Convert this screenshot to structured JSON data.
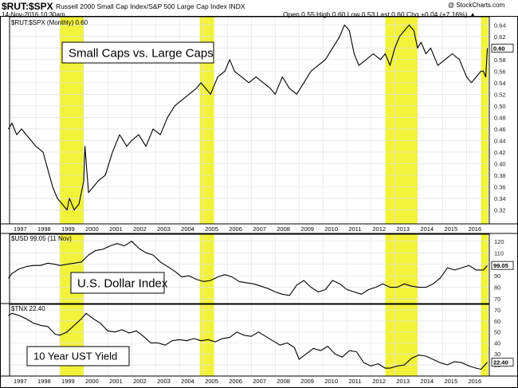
{
  "header": {
    "ticker": "$RUT:$SPX",
    "description": "Russell 2000 Small Cap Index/S&P 500 Large Cap Index  INDX",
    "date": "14-Nov-2016 10:30am",
    "quote": "Open 0.55  High 0.60  Low 0.53  Last 0.60  Chg +0.04 (+7.16%) ▲",
    "credit": "@ StockCharts.com"
  },
  "colors": {
    "highlight": "#f2f23a",
    "line": "#000000",
    "grid": "#e3e3e3",
    "badge_fill": "#ffffff"
  },
  "x_axis_labels": [
    "1997",
    "1998",
    "1999",
    "2000",
    "2001",
    "2002",
    "2003",
    "2004",
    "2005",
    "2006",
    "2007",
    "2008",
    "2009",
    "2010",
    "2011",
    "2012",
    "2013",
    "2014",
    "2015",
    "2016"
  ],
  "highlight_periods": [
    [
      1999.0,
      2000.0
    ],
    [
      2004.85,
      2005.45
    ],
    [
      2012.6,
      2013.95
    ],
    [
      2016.6,
      2016.9
    ]
  ],
  "chart_data": [
    {
      "type": "line",
      "panel": "ratio",
      "legend": "$RUT:$SPX (Monthly) 0.60",
      "annotation": "Small Caps vs. Large Caps",
      "last_value_badge": "0.60",
      "ylim": [
        0.3,
        0.65
      ],
      "yticks": [
        "0.64",
        "0.62",
        "0.60",
        "0.58",
        "0.56",
        "0.54",
        "0.52",
        "0.50",
        "0.48",
        "0.46",
        "0.44",
        "0.42",
        "0.40",
        "0.38",
        "0.36",
        "0.34",
        "0.32"
      ],
      "x": [
        1996.85,
        1997.0,
        1997.2,
        1997.4,
        1997.6,
        1997.8,
        1998.0,
        1998.3,
        1998.5,
        1998.7,
        1998.9,
        1999.1,
        1999.3,
        1999.4,
        1999.6,
        1999.8,
        1999.9,
        2000.0,
        2000.05,
        2000.2,
        2000.4,
        2000.6,
        2000.9,
        2001.2,
        2001.5,
        2001.8,
        2002.0,
        2002.3,
        2002.6,
        2002.9,
        2003.2,
        2003.5,
        2003.8,
        2004.1,
        2004.4,
        2004.7,
        2004.9,
        2005.1,
        2005.3,
        2005.6,
        2005.9,
        2006.1,
        2006.3,
        2006.6,
        2006.9,
        2007.2,
        2007.5,
        2007.8,
        2008.0,
        2008.3,
        2008.6,
        2008.9,
        2009.2,
        2009.5,
        2009.8,
        2010.1,
        2010.4,
        2010.7,
        2010.9,
        2011.1,
        2011.3,
        2011.5,
        2011.8,
        2012.1,
        2012.4,
        2012.6,
        2012.8,
        2013.0,
        2013.2,
        2013.4,
        2013.6,
        2013.8,
        2013.95,
        2014.1,
        2014.3,
        2014.5,
        2014.8,
        2015.1,
        2015.4,
        2015.7,
        2016.0,
        2016.2,
        2016.4,
        2016.6,
        2016.7,
        2016.8,
        2016.87
      ],
      "y": [
        0.46,
        0.47,
        0.45,
        0.46,
        0.45,
        0.44,
        0.43,
        0.42,
        0.39,
        0.36,
        0.34,
        0.33,
        0.32,
        0.34,
        0.32,
        0.33,
        0.35,
        0.37,
        0.43,
        0.35,
        0.36,
        0.37,
        0.38,
        0.42,
        0.45,
        0.43,
        0.44,
        0.45,
        0.43,
        0.46,
        0.45,
        0.48,
        0.5,
        0.51,
        0.52,
        0.53,
        0.54,
        0.53,
        0.52,
        0.55,
        0.56,
        0.58,
        0.56,
        0.55,
        0.54,
        0.55,
        0.54,
        0.53,
        0.52,
        0.55,
        0.53,
        0.52,
        0.54,
        0.56,
        0.57,
        0.58,
        0.6,
        0.62,
        0.64,
        0.63,
        0.59,
        0.57,
        0.58,
        0.59,
        0.58,
        0.59,
        0.57,
        0.6,
        0.62,
        0.63,
        0.64,
        0.63,
        0.6,
        0.61,
        0.59,
        0.6,
        0.57,
        0.58,
        0.59,
        0.58,
        0.55,
        0.54,
        0.55,
        0.56,
        0.56,
        0.55,
        0.6
      ]
    },
    {
      "type": "line",
      "panel": "usd",
      "legend": "$USD 99.05 (11 Nov)",
      "annotation": "U.S. Dollar Index",
      "last_value_badge": "99.05",
      "ylim": [
        68,
        124
      ],
      "yticks": [
        "120",
        "110",
        "100",
        "90",
        "80",
        "70"
      ],
      "x": [
        1996.85,
        1997.0,
        1997.3,
        1997.6,
        1997.9,
        1998.2,
        1998.5,
        1998.8,
        1999.0,
        1999.3,
        1999.6,
        1999.9,
        2000.2,
        2000.5,
        2000.8,
        2001.1,
        2001.4,
        2001.7,
        2002.0,
        2002.3,
        2002.6,
        2002.9,
        2003.2,
        2003.5,
        2003.8,
        2004.1,
        2004.4,
        2004.7,
        2005.0,
        2005.3,
        2005.6,
        2005.9,
        2006.2,
        2006.5,
        2006.8,
        2007.1,
        2007.4,
        2007.7,
        2008.0,
        2008.3,
        2008.6,
        2008.9,
        2009.2,
        2009.5,
        2009.8,
        2010.1,
        2010.4,
        2010.7,
        2011.0,
        2011.3,
        2011.6,
        2011.9,
        2012.2,
        2012.5,
        2012.8,
        2013.1,
        2013.4,
        2013.7,
        2014.0,
        2014.3,
        2014.6,
        2014.9,
        2015.2,
        2015.5,
        2015.8,
        2016.1,
        2016.4,
        2016.7,
        2016.87
      ],
      "y": [
        88,
        92,
        96,
        98,
        99,
        99,
        101,
        100,
        99,
        100,
        101,
        102,
        108,
        112,
        113,
        116,
        118,
        116,
        120,
        114,
        110,
        108,
        102,
        98,
        94,
        89,
        90,
        87,
        85,
        86,
        89,
        91,
        89,
        85,
        84,
        83,
        81,
        79,
        76,
        74,
        73,
        82,
        86,
        80,
        76,
        78,
        86,
        83,
        78,
        76,
        74,
        78,
        80,
        83,
        80,
        80,
        83,
        81,
        80,
        80,
        83,
        88,
        97,
        95,
        97,
        99,
        95,
        95,
        99
      ]
    },
    {
      "type": "line",
      "panel": "tnx",
      "legend": "$TNX 22.40",
      "annotation": "10 Year UST Yield",
      "last_value_badge": "22.40",
      "ylim": [
        12,
        73
      ],
      "yticks": [
        "70",
        "60",
        "50",
        "40",
        "30",
        "20"
      ],
      "x": [
        1996.85,
        1997.0,
        1997.3,
        1997.6,
        1997.9,
        1998.2,
        1998.5,
        1998.8,
        1999.0,
        1999.3,
        1999.6,
        1999.9,
        2000.1,
        2000.4,
        2000.7,
        2001.0,
        2001.3,
        2001.6,
        2001.9,
        2002.2,
        2002.5,
        2002.8,
        2003.1,
        2003.4,
        2003.7,
        2004.0,
        2004.3,
        2004.6,
        2004.9,
        2005.2,
        2005.5,
        2005.8,
        2006.1,
        2006.4,
        2006.7,
        2007.0,
        2007.3,
        2007.6,
        2007.9,
        2008.2,
        2008.5,
        2008.8,
        2009.0,
        2009.3,
        2009.6,
        2009.9,
        2010.2,
        2010.5,
        2010.8,
        2011.1,
        2011.4,
        2011.7,
        2012.0,
        2012.3,
        2012.6,
        2012.8,
        2013.1,
        2013.4,
        2013.7,
        2014.0,
        2014.3,
        2014.6,
        2014.9,
        2015.2,
        2015.5,
        2015.8,
        2016.1,
        2016.4,
        2016.6,
        2016.87
      ],
      "y": [
        65,
        67,
        65,
        62,
        58,
        56,
        55,
        48,
        47,
        50,
        56,
        62,
        67,
        62,
        58,
        51,
        50,
        52,
        49,
        51,
        46,
        40,
        40,
        38,
        42,
        43,
        42,
        44,
        42,
        43,
        41,
        44,
        45,
        50,
        47,
        46,
        50,
        46,
        42,
        38,
        40,
        36,
        25,
        30,
        35,
        33,
        37,
        30,
        27,
        33,
        32,
        22,
        19,
        21,
        17,
        17,
        19,
        20,
        26,
        29,
        28,
        25,
        22,
        20,
        23,
        22,
        19,
        17,
        16,
        22.4
      ]
    }
  ]
}
